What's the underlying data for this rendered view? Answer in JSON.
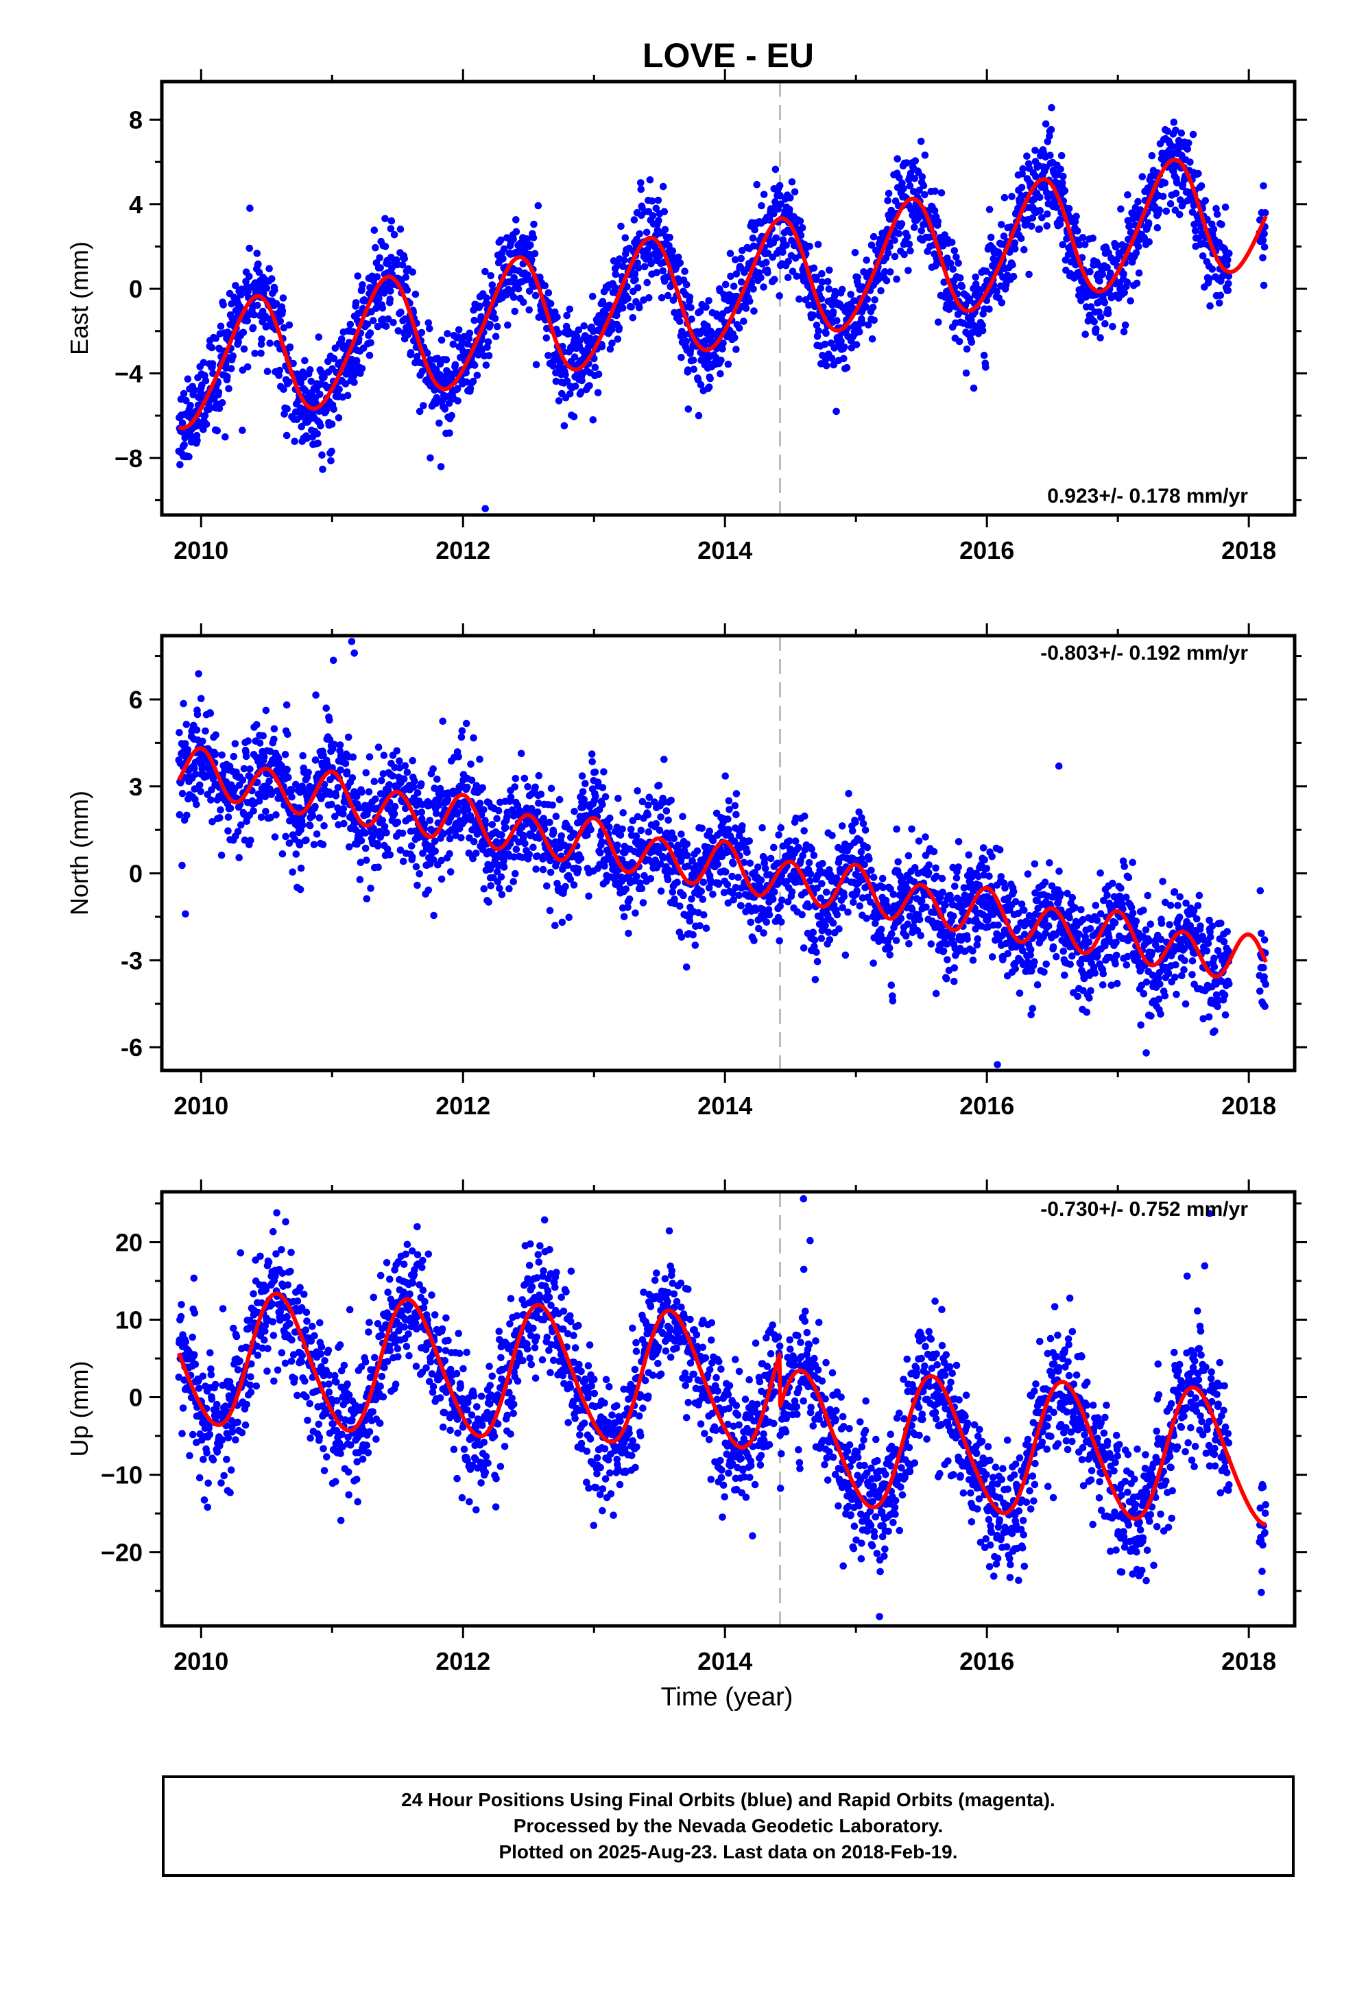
{
  "title": "LOVE - EU",
  "xlabel": "Time (year)",
  "colors": {
    "points": "#0000ff",
    "model": "#ff0000",
    "gap_line": "#bbbbbb",
    "frame": "#000000"
  },
  "footer": {
    "line1": "24 Hour Positions Using Final Orbits (blue) and Rapid Orbits (magenta).",
    "line2": "Processed by the Nevada Geodetic Laboratory.",
    "line3": "Plotted on 2025-Aug-23. Last data on 2018-Feb-19."
  },
  "chart_data": [
    {
      "type": "scatter",
      "component": "east",
      "ylabel": "East (mm)",
      "xlim": [
        2009.7,
        2018.35
      ],
      "ylim": [
        -10.7,
        9.8
      ],
      "xticks": [
        2010,
        2012,
        2014,
        2016,
        2018
      ],
      "yticks": [
        -8,
        -4,
        0,
        4,
        8
      ],
      "yticklabels": [
        "−8",
        "−4",
        "0",
        "4",
        "8"
      ],
      "rate_label": "0.923+/- 0.178 mm/yr",
      "rate_position": "bottom-right",
      "break_line_x": 2014.42,
      "model": {
        "name": "",
        "rate_mm_per_yr": 0.923,
        "value_at_2014": 0.0,
        "annual_amp_mm": 2.8,
        "annual_peak_phase": 0.4,
        "semiannual_amp_mm": 0.3
      },
      "series": [
        {
          "name": "",
          "x_start": 2009.83,
          "x_end": 2018.13,
          "scatter_mm": 1.1,
          "gap": [
            2017.85,
            2018.08
          ]
        },
        {
          "name": "",
          "x": [
            2012.17,
            2011.75,
            2014.85,
            2015.9
          ],
          "y": [
            -10.4,
            -8.0,
            -5.8,
            -4.7
          ]
        }
      ]
    },
    {
      "type": "scatter",
      "component": "north",
      "ylabel": "North (mm)",
      "xlim": [
        2009.7,
        2018.35
      ],
      "ylim": [
        -6.8,
        8.2
      ],
      "xticks": [
        2010,
        2012,
        2014,
        2016,
        2018
      ],
      "yticks": [
        -6,
        -3,
        0,
        3,
        6
      ],
      "yticklabels": [
        "-6",
        "-3",
        "0",
        "3",
        "6"
      ],
      "rate_label": "-0.803+/- 0.192 mm/yr",
      "rate_position": "top-right",
      "break_line_x": 2014.42,
      "model": {
        "name": "",
        "rate_mm_per_yr": -0.803,
        "value_at_2014": 0.2,
        "annual_amp_mm": 0.15,
        "semiannual_amp_mm": 0.75,
        "semiannual_peak_phase": 0.0
      },
      "series": [
        {
          "name": "",
          "x_start": 2009.83,
          "x_end": 2018.13,
          "scatter_mm": 0.9,
          "gap": [
            2017.85,
            2018.08
          ]
        },
        {
          "name": "",
          "x": [
            2011.15,
            2011.17,
            2016.55,
            2016.08,
            2009.88
          ],
          "y": [
            8.0,
            7.6,
            3.7,
            -6.6,
            -1.4
          ]
        }
      ]
    },
    {
      "type": "scatter",
      "component": "up",
      "ylabel": "Up (mm)",
      "xlim": [
        2009.7,
        2018.35
      ],
      "ylim": [
        -29.5,
        26.5
      ],
      "xticks": [
        2010,
        2012,
        2014,
        2016,
        2018
      ],
      "yticks": [
        -20,
        -10,
        0,
        10,
        20
      ],
      "yticklabels": [
        "−20",
        "−10",
        "0",
        "10",
        "20"
      ],
      "rate_label": "-0.730+/- 0.752 mm/yr",
      "rate_position": "top-right",
      "break_line_x": 2014.42,
      "model": {
        "name": "",
        "rate_mm_per_yr": -0.73,
        "value_at_2014": 2.0,
        "offset_after_break_mm": -7.0,
        "annual_amp_mm": 8.5,
        "annual_peak_phase": 0.6,
        "semiannual_amp_mm": 0.8
      },
      "series": [
        {
          "name": "",
          "x_start": 2009.83,
          "x_end": 2018.13,
          "scatter_mm": 4.0,
          "gap": [
            2017.85,
            2018.08
          ]
        },
        {
          "name": "",
          "x": [
            2014.6,
            2015.18,
            2017.7,
            2011.65,
            2014.65
          ],
          "y": [
            25.6,
            -28.3,
            23.7,
            22.0,
            20.2
          ]
        }
      ]
    }
  ]
}
